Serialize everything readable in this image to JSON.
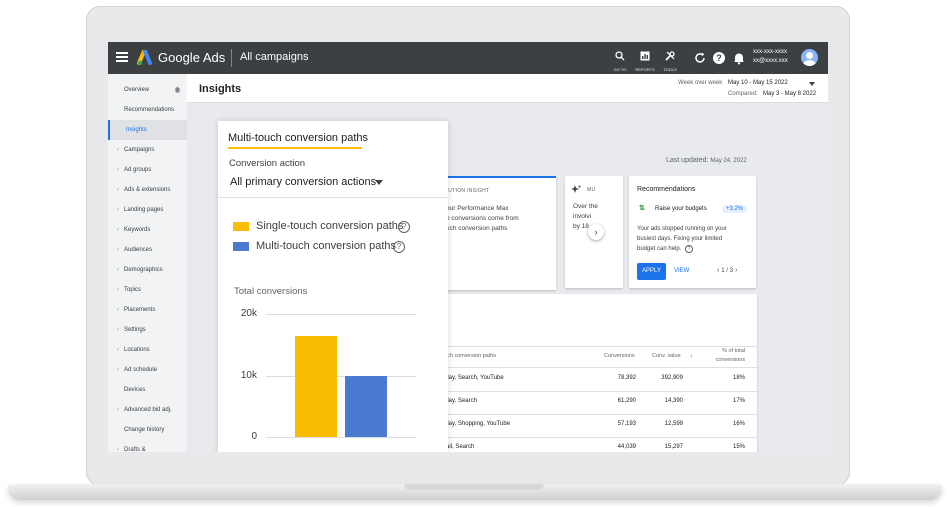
{
  "topbar": {
    "brand": "Google Ads",
    "campaigns_title": "All campaigns",
    "tools": [
      {
        "label": "GO TO",
        "icon": "search-icon"
      },
      {
        "label": "REPORTS",
        "icon": "reports-icon"
      },
      {
        "label": "TOOLS",
        "icon": "tools-icon"
      }
    ],
    "account_line1": "xxx-xxx-xxxx",
    "account_line2": "xx@xxxx.xxx"
  },
  "header": {
    "page_title": "Insights",
    "period_label": "Week over week",
    "period_value": "May 10 - May 15 2022",
    "compared_label": "Compared:",
    "compared_value": "May 3 - May 8 2022"
  },
  "sidebar": {
    "items": [
      {
        "label": "Overview",
        "caret": false
      },
      {
        "label": "Recommendations",
        "caret": false
      },
      {
        "label": "Insights",
        "caret": false
      },
      {
        "label": "Campaigns",
        "caret": true
      },
      {
        "label": "Ad groups",
        "caret": true
      },
      {
        "label": "Ads & extensions",
        "caret": true
      },
      {
        "label": "Landing pages",
        "caret": true
      },
      {
        "label": "Keywords",
        "caret": true
      },
      {
        "label": "Audiences",
        "caret": true
      },
      {
        "label": "Demographics",
        "caret": true
      },
      {
        "label": "Topics",
        "caret": true
      },
      {
        "label": "Placements",
        "caret": true
      },
      {
        "label": "Settings",
        "caret": true
      },
      {
        "label": "Locations",
        "caret": true
      },
      {
        "label": "Ad schedule",
        "caret": true
      },
      {
        "label": "Devices",
        "caret": false
      },
      {
        "label": "Advanced bid adj.",
        "caret": true
      },
      {
        "label": "Change history",
        "caret": false
      },
      {
        "label": "Drafts &",
        "caret": true
      }
    ]
  },
  "content": {
    "last_updated_label": "Last updated:",
    "last_updated_value": "May 24, 2022",
    "attribution_card": {
      "heading": "RIBUTION INSIGHT",
      "lines": [
        "our Performance Max",
        "n conversions come from",
        "uch conversion paths"
      ]
    },
    "second_card": {
      "heading": "MU",
      "lines": [
        "Over the",
        "involvi",
        "by 18"
      ]
    },
    "recommendations": {
      "title": "Recommendations",
      "item": "Raise your budgets",
      "badge": "+3.2%",
      "body_lines": [
        "Your ads stopped running on your",
        "busiest days. Fixing your limited",
        "budget can help."
      ],
      "apply": "APPLY",
      "view": "VIEW",
      "pager": "1 / 3"
    },
    "table": {
      "headers": {
        "path": "ouch conversion paths",
        "conversions": "Conversions",
        "conv_value": "Conv. value",
        "pct_line1": "% of total",
        "pct_line2": "conversions"
      },
      "rows": [
        {
          "path": "splay, Search, YouTube",
          "conversions": "78,392",
          "conv_value": "392,909",
          "pct": "18%"
        },
        {
          "path": "splay, Search",
          "conversions": "61,290",
          "conv_value": "14,390",
          "pct": "17%"
        },
        {
          "path": "splay, Shopping, YouTube",
          "conversions": "57,193",
          "conv_value": "12,599",
          "pct": "16%"
        },
        {
          "path": "mail, Search",
          "conversions": "44,039",
          "conv_value": "15,297",
          "pct": "15%"
        }
      ]
    }
  },
  "overlay": {
    "title": "Multi-touch conversion paths",
    "subtitle": "Conversion action",
    "selected_action": "All primary conversion actions",
    "legend": [
      {
        "label": "Single-touch conversion paths",
        "color": "#fbbc04"
      },
      {
        "label": "Multi-touch conversion paths",
        "color": "#4a7bd0"
      }
    ],
    "y_axis_label": "Total conversions"
  },
  "chart_data": {
    "type": "bar",
    "categories": [
      "Single-touch conversion paths",
      "Multi-touch conversion paths"
    ],
    "values": [
      16500,
      10000
    ],
    "colors": [
      "#fbbc04",
      "#4a7bd0"
    ],
    "ylabel": "Total conversions",
    "ylim": [
      0,
      20000
    ],
    "yticks": [
      {
        "value": 20000,
        "label": "20k"
      },
      {
        "value": 10000,
        "label": "10k"
      },
      {
        "value": 0,
        "label": "0"
      }
    ],
    "grid": true
  }
}
